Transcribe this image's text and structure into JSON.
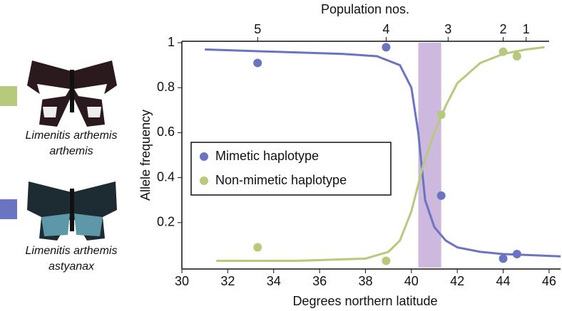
{
  "chart_data": {
    "type": "scatter",
    "top_axis_title": "Population nos.",
    "xlabel": "Degrees northern latitude",
    "ylabel": "Allele frequency",
    "xlim": [
      30,
      46.5
    ],
    "xticks": [
      30,
      32,
      34,
      36,
      38,
      40,
      42,
      44,
      46
    ],
    "ylim": [
      0,
      1
    ],
    "yticks": [
      0.2,
      0.4,
      0.6,
      0.8,
      1
    ],
    "top_ticks": [
      {
        "value": 33.3,
        "label": "5"
      },
      {
        "value": 38.9,
        "label": "4"
      },
      {
        "value": 41.6,
        "label": "3"
      },
      {
        "value": 44.0,
        "label": "2"
      },
      {
        "value": 45.0,
        "label": "1"
      }
    ],
    "zone": [
      40.3,
      41.3
    ],
    "zone_color": "#cdb8de",
    "legend": "center-left",
    "series": [
      {
        "name": "Mimetic haplotype",
        "color": "#6b74c0",
        "x": [
          33.3,
          38.9,
          41.3,
          44.0,
          44.6
        ],
        "values": [
          0.91,
          0.98,
          0.32,
          0.04,
          0.06
        ],
        "fit_x": [
          31,
          34,
          37,
          38.5,
          39.5,
          40,
          40.3,
          40.6,
          41,
          41.5,
          42,
          43,
          44,
          46.5
        ],
        "fit_values": [
          0.97,
          0.96,
          0.95,
          0.94,
          0.9,
          0.8,
          0.6,
          0.3,
          0.18,
          0.12,
          0.09,
          0.07,
          0.06,
          0.05
        ]
      },
      {
        "name": "Non-mimetic haplotype",
        "color": "#b6c97c",
        "x": [
          33.3,
          38.9,
          41.3,
          44.0,
          44.6
        ],
        "values": [
          0.09,
          0.03,
          0.68,
          0.96,
          0.94
        ],
        "fit_x": [
          31.5,
          35,
          38,
          39,
          39.5,
          40,
          40.5,
          41,
          41.5,
          42,
          43,
          44,
          45,
          45.8
        ],
        "fit_values": [
          0.03,
          0.03,
          0.04,
          0.07,
          0.12,
          0.25,
          0.45,
          0.6,
          0.72,
          0.82,
          0.91,
          0.95,
          0.97,
          0.98
        ]
      }
    ]
  },
  "captions": [
    {
      "line1": "Limenitis arthemis",
      "line2": "arthemis"
    },
    {
      "line1": "Limenitis arthemis",
      "line2": "astyanax"
    }
  ]
}
